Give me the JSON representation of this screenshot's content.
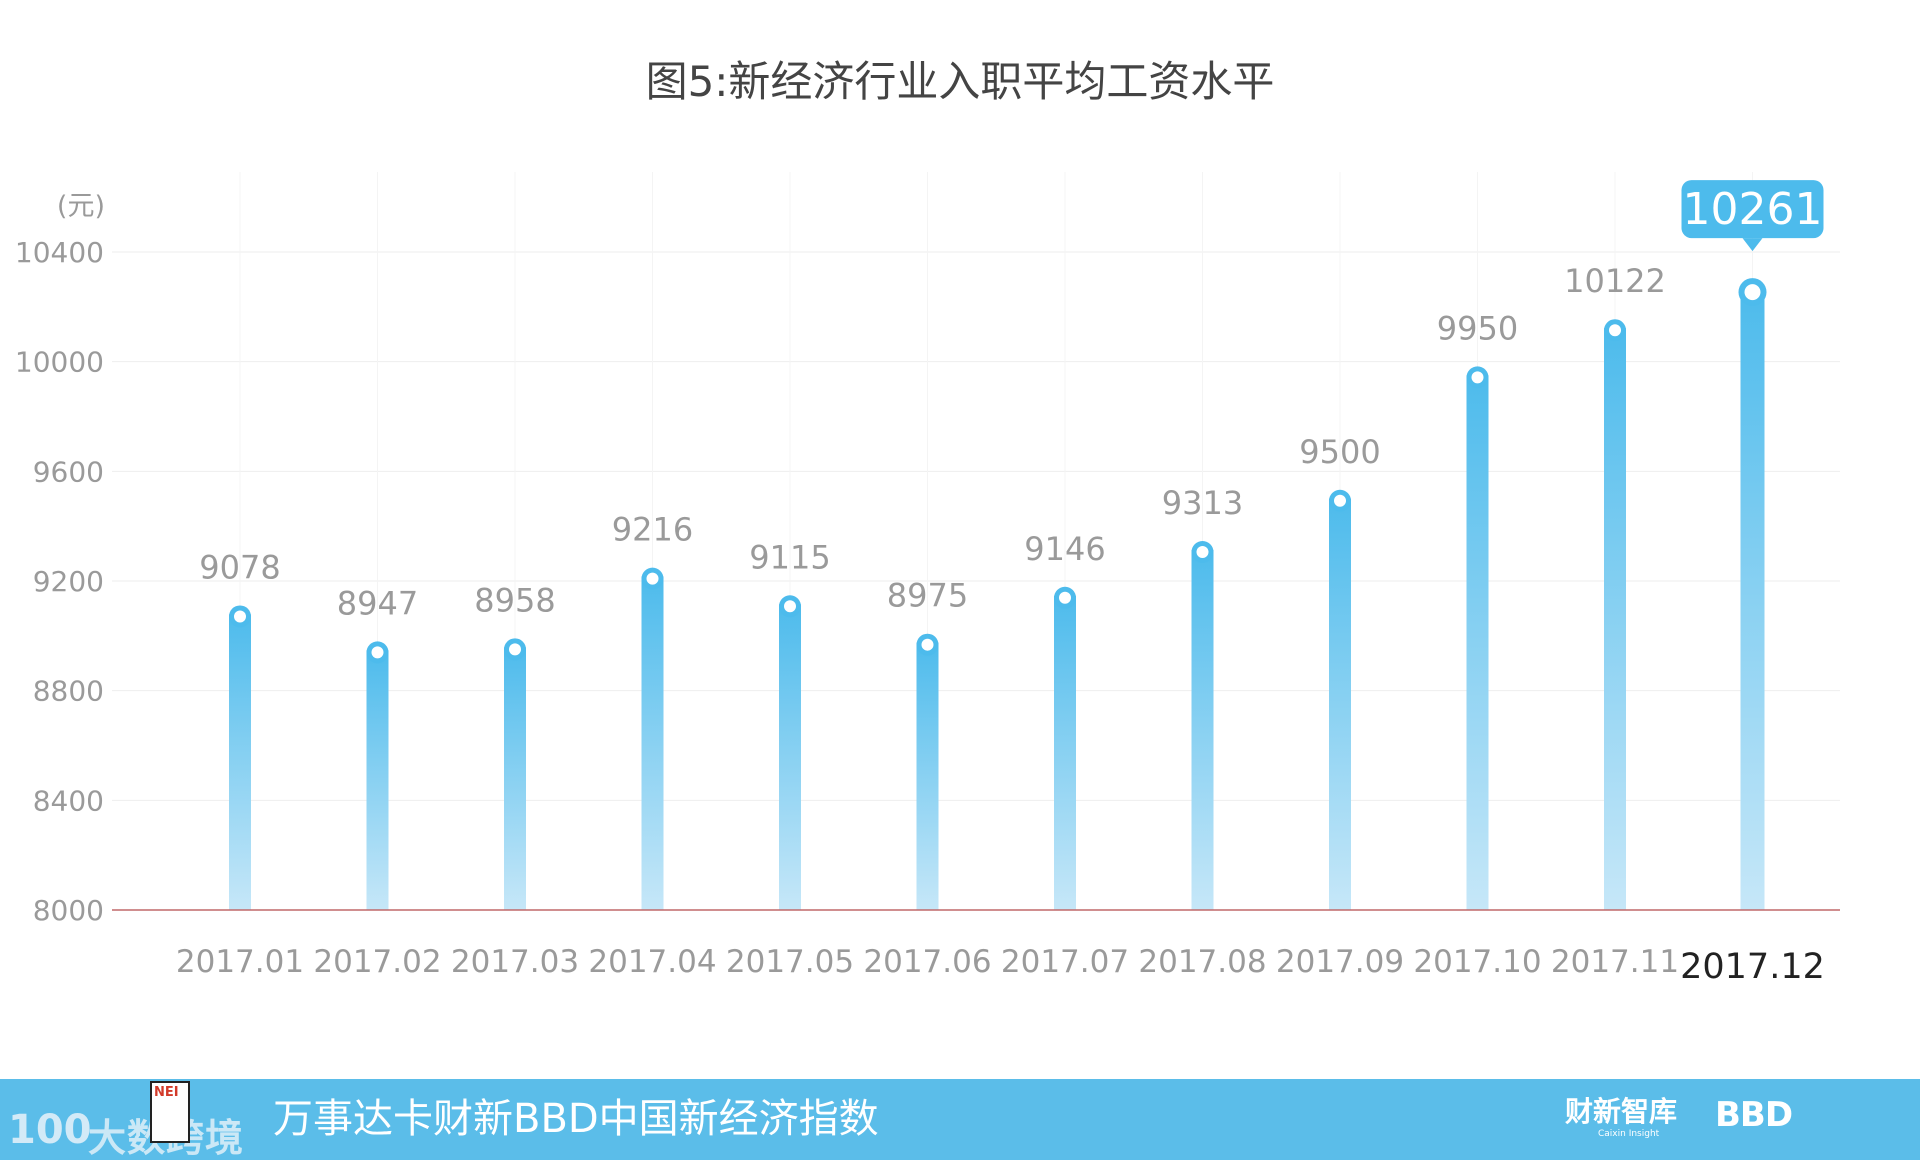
{
  "chart_data": {
    "type": "bar",
    "title": "图5:新经济行业入职平均工资水平",
    "ylabel": "(元)",
    "xlabel": "",
    "ylim": [
      8000,
      10400
    ],
    "yticks": [
      8000,
      8400,
      8800,
      9200,
      9600,
      10000,
      10400
    ],
    "categories": [
      "2017.01",
      "2017.02",
      "2017.03",
      "2017.04",
      "2017.05",
      "2017.06",
      "2017.07",
      "2017.08",
      "2017.09",
      "2017.10",
      "2017.11",
      "2017.12"
    ],
    "values": [
      9078,
      8947,
      8958,
      9216,
      9115,
      8975,
      9146,
      9313,
      9500,
      9950,
      10122,
      10261
    ],
    "highlight_index": 11,
    "grid": true,
    "colors": {
      "bar_top": "#4dbbec",
      "bar_bottom": "#c6e7f8",
      "label": "#9a9a9a",
      "axis": "#c0686a",
      "grid": "#eeeeee",
      "callout": "#4dbbec"
    }
  },
  "footer": {
    "title": "万事达卡财新BBD中国新经济指数",
    "brand_caixin": "财新智库",
    "brand_caixin_sub": "Caixin Insight",
    "brand_bbd": "BBD"
  },
  "watermark": {
    "logo": "100",
    "text": "大数跨境",
    "badge": "NEI"
  }
}
